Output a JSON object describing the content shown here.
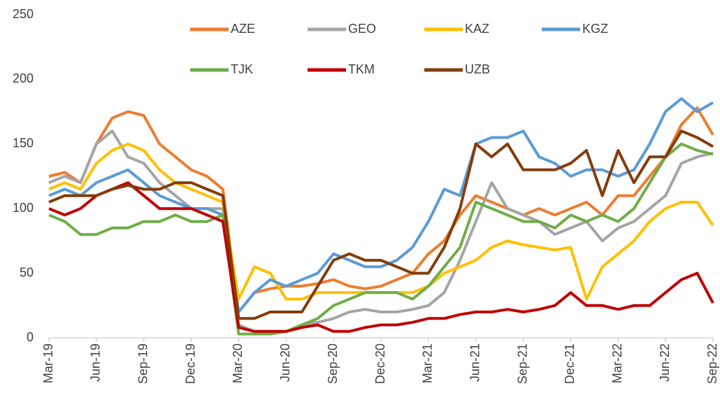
{
  "chart_data": {
    "type": "line",
    "categories": [
      "Mar-19",
      null,
      null,
      "Jun-19",
      null,
      null,
      "Sep-19",
      null,
      null,
      "Dec-19",
      null,
      null,
      "Mar-20",
      null,
      null,
      "Jun-20",
      null,
      null,
      "Sep-20",
      null,
      null,
      "Dec-20",
      null,
      null,
      "Mar-21",
      null,
      null,
      "Jun-21",
      null,
      null,
      "Sep-21",
      null,
      null,
      "Dec-21",
      null,
      null,
      "Mar-22",
      null,
      null,
      "Jun-22",
      null,
      null,
      "Sep-22"
    ],
    "series": [
      {
        "name": "AZE",
        "color": "#ed7d31",
        "values": [
          125,
          128,
          120,
          150,
          170,
          175,
          172,
          150,
          140,
          130,
          125,
          115,
          20,
          35,
          38,
          40,
          40,
          42,
          45,
          40,
          38,
          40,
          45,
          50,
          65,
          75,
          95,
          110,
          105,
          100,
          95,
          100,
          95,
          100,
          105,
          95,
          110,
          110,
          125,
          140,
          165,
          178,
          157
        ]
      },
      {
        "name": "GEO",
        "color": "#a5a5a5",
        "values": [
          120,
          125,
          120,
          150,
          160,
          140,
          135,
          120,
          110,
          100,
          100,
          100,
          10,
          5,
          5,
          5,
          10,
          12,
          15,
          20,
          22,
          20,
          20,
          22,
          25,
          35,
          60,
          90,
          120,
          100,
          95,
          90,
          80,
          85,
          90,
          75,
          85,
          90,
          100,
          110,
          135,
          140,
          143
        ]
      },
      {
        "name": "KAZ",
        "color": "#ffc000",
        "values": [
          115,
          120,
          115,
          135,
          145,
          150,
          145,
          130,
          120,
          115,
          110,
          105,
          30,
          55,
          50,
          30,
          30,
          35,
          35,
          35,
          35,
          35,
          35,
          35,
          40,
          50,
          55,
          60,
          70,
          75,
          72,
          70,
          68,
          70,
          30,
          55,
          65,
          75,
          90,
          100,
          105,
          105,
          87
        ]
      },
      {
        "name": "KGZ",
        "color": "#5b9bd5",
        "values": [
          110,
          115,
          110,
          120,
          125,
          130,
          120,
          110,
          105,
          100,
          100,
          95,
          20,
          35,
          45,
          40,
          45,
          50,
          65,
          60,
          55,
          55,
          60,
          70,
          90,
          115,
          110,
          150,
          155,
          155,
          160,
          140,
          135,
          125,
          130,
          130,
          125,
          130,
          150,
          175,
          185,
          175,
          182
        ]
      },
      {
        "name": "TJK",
        "color": "#70ad47",
        "values": [
          95,
          90,
          80,
          80,
          85,
          85,
          90,
          90,
          95,
          90,
          90,
          95,
          3,
          3,
          3,
          5,
          10,
          15,
          25,
          30,
          35,
          35,
          35,
          30,
          40,
          55,
          70,
          105,
          100,
          95,
          90,
          90,
          85,
          95,
          90,
          95,
          90,
          100,
          120,
          140,
          150,
          145,
          142
        ]
      },
      {
        "name": "TKM",
        "color": "#c00000",
        "values": [
          100,
          95,
          100,
          110,
          115,
          120,
          110,
          100,
          100,
          100,
          95,
          90,
          8,
          5,
          5,
          5,
          8,
          10,
          5,
          5,
          8,
          10,
          10,
          12,
          15,
          15,
          18,
          20,
          20,
          22,
          20,
          22,
          25,
          35,
          25,
          25,
          22,
          25,
          25,
          35,
          45,
          50,
          27
        ]
      },
      {
        "name": "UZB",
        "color": "#843c0c",
        "values": [
          105,
          110,
          110,
          110,
          115,
          118,
          115,
          115,
          120,
          120,
          115,
          110,
          15,
          15,
          20,
          20,
          20,
          40,
          60,
          65,
          60,
          60,
          55,
          50,
          50,
          70,
          100,
          150,
          140,
          150,
          130,
          130,
          130,
          135,
          145,
          110,
          145,
          120,
          140,
          140,
          160,
          155,
          148
        ]
      }
    ],
    "ylim": [
      0,
      250
    ],
    "yticks": [
      0,
      50,
      100,
      150,
      200,
      250
    ],
    "grid": false
  }
}
